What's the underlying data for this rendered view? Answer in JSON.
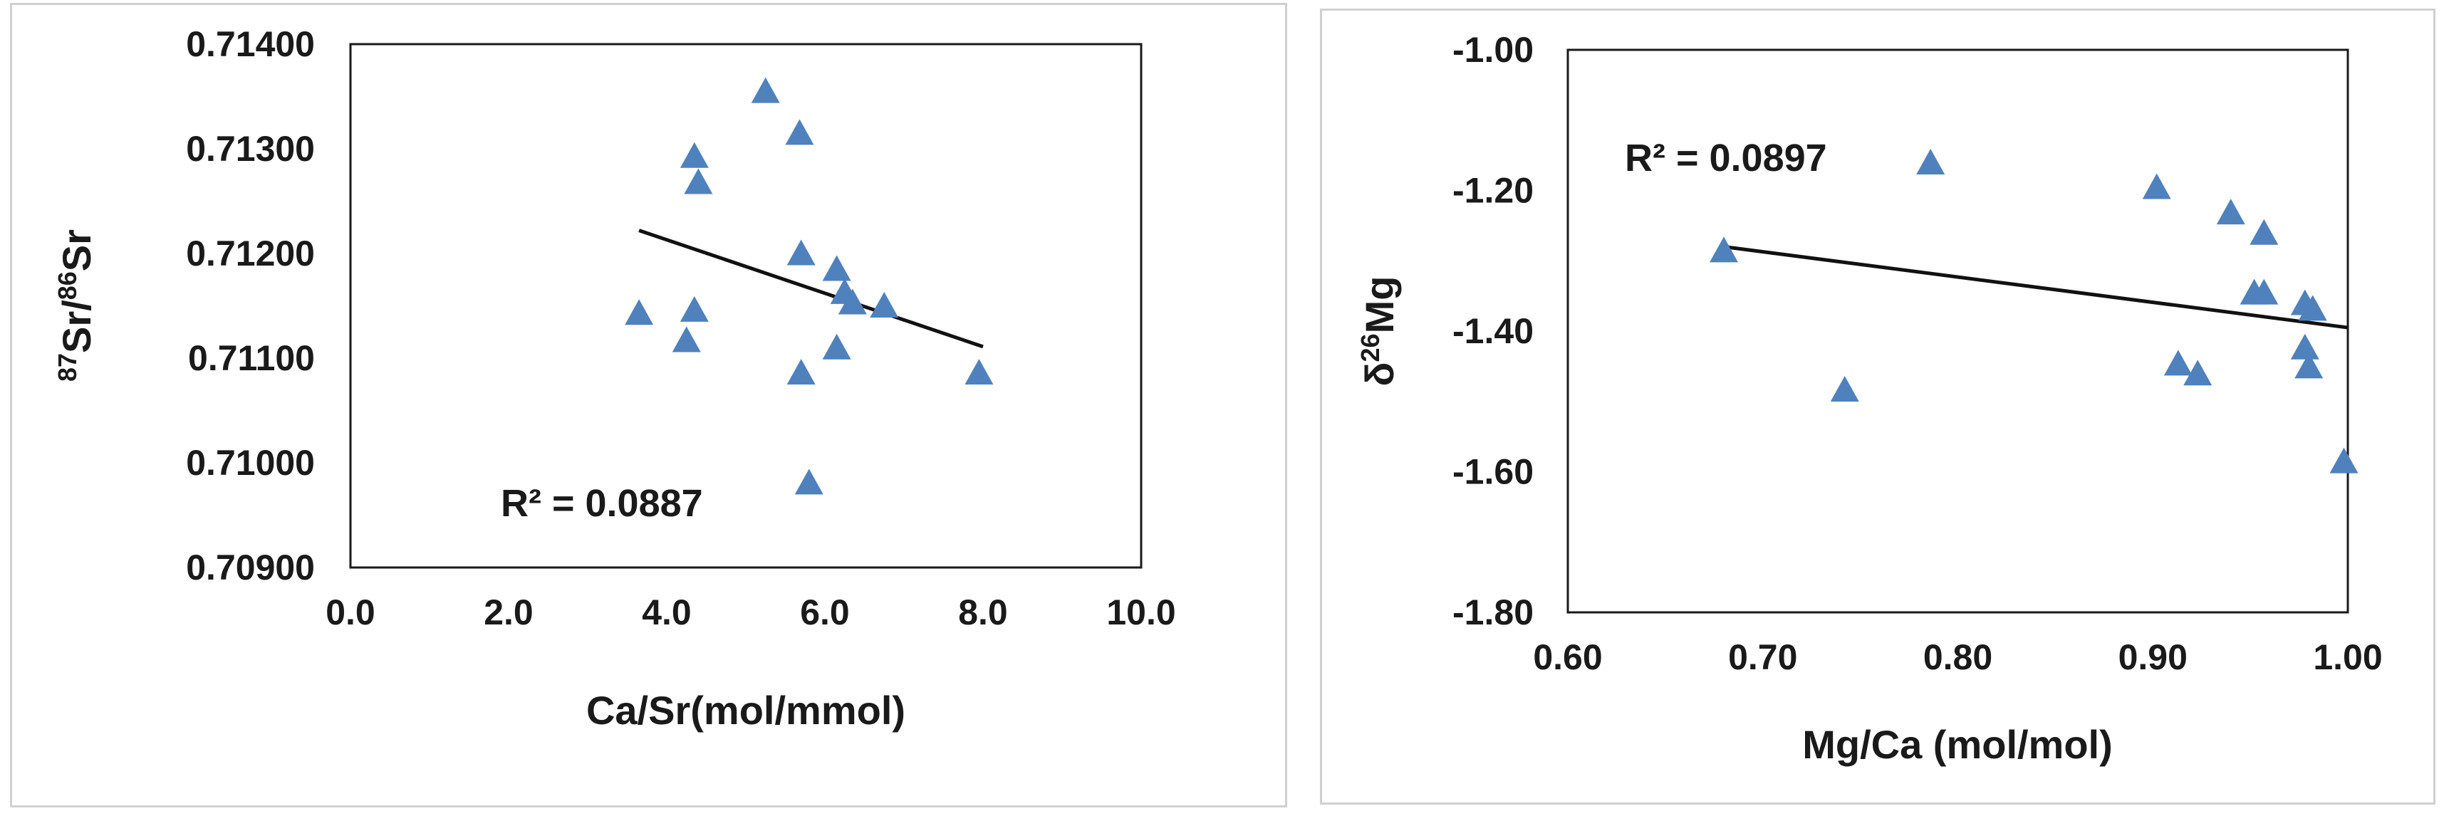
{
  "chart_data": [
    {
      "type": "scatter",
      "xlabel": "Ca/Sr(mol/mmol)",
      "ylabel": {
        "sup1": "87",
        "base1": "Sr/",
        "sup2": "86",
        "base2": "Sr"
      },
      "xlim": [
        0,
        10
      ],
      "ylim": [
        0.709,
        0.714
      ],
      "xticks": [
        "0.0",
        "2.0",
        "4.0",
        "6.0",
        "8.0",
        "10.0"
      ],
      "yticks": [
        "0.70900",
        "0.71000",
        "0.71100",
        "0.71200",
        "0.71300",
        "0.71400"
      ],
      "r2_label": "R² = 0.0887",
      "marker_color": "#4f81bd",
      "trendline": {
        "x": [
          3.65,
          8.0
        ],
        "y": [
          0.71222,
          0.71111
        ]
      },
      "points": [
        {
          "x": 5.25,
          "y": 0.71354
        },
        {
          "x": 5.68,
          "y": 0.71314
        },
        {
          "x": 4.35,
          "y": 0.71292
        },
        {
          "x": 4.4,
          "y": 0.71267
        },
        {
          "x": 5.7,
          "y": 0.71199
        },
        {
          "x": 6.15,
          "y": 0.71184
        },
        {
          "x": 6.25,
          "y": 0.71162
        },
        {
          "x": 6.35,
          "y": 0.71152
        },
        {
          "x": 6.75,
          "y": 0.71149
        },
        {
          "x": 3.65,
          "y": 0.71142
        },
        {
          "x": 4.35,
          "y": 0.71145
        },
        {
          "x": 4.25,
          "y": 0.71116
        },
        {
          "x": 6.15,
          "y": 0.71109
        },
        {
          "x": 5.7,
          "y": 0.71085
        },
        {
          "x": 7.95,
          "y": 0.71085
        },
        {
          "x": 5.8,
          "y": 0.7098
        }
      ]
    },
    {
      "type": "scatter",
      "xlabel": "Mg/Ca (mol/mol)",
      "ylabel": {
        "base1": "δ",
        "sup1": "26",
        "base2": "Mg"
      },
      "xlim": [
        0.6,
        1.0
      ],
      "ylim": [
        -1.8,
        -1.0
      ],
      "xticks": [
        "0.60",
        "0.70",
        "0.80",
        "0.90",
        "1.00"
      ],
      "yticks": [
        "-1.80",
        "-1.60",
        "-1.40",
        "-1.20",
        "-1.00"
      ],
      "r2_label": "R² = 0.0897",
      "marker_color": "#4f81bd",
      "trendline": {
        "x": [
          0.68,
          1.0
        ],
        "y": [
          -1.28,
          -1.395
        ]
      },
      "points": [
        {
          "x": 0.68,
          "y": -1.287
        },
        {
          "x": 0.742,
          "y": -1.485
        },
        {
          "x": 0.786,
          "y": -1.162
        },
        {
          "x": 0.902,
          "y": -1.197
        },
        {
          "x": 0.913,
          "y": -1.448
        },
        {
          "x": 0.923,
          "y": -1.462
        },
        {
          "x": 0.94,
          "y": -1.233
        },
        {
          "x": 0.952,
          "y": -1.347
        },
        {
          "x": 0.957,
          "y": -1.347
        },
        {
          "x": 0.957,
          "y": -1.262
        },
        {
          "x": 0.978,
          "y": -1.362
        },
        {
          "x": 0.982,
          "y": -1.37
        },
        {
          "x": 0.978,
          "y": -1.425
        },
        {
          "x": 0.98,
          "y": -1.452
        },
        {
          "x": 0.998,
          "y": -1.587
        }
      ]
    }
  ]
}
